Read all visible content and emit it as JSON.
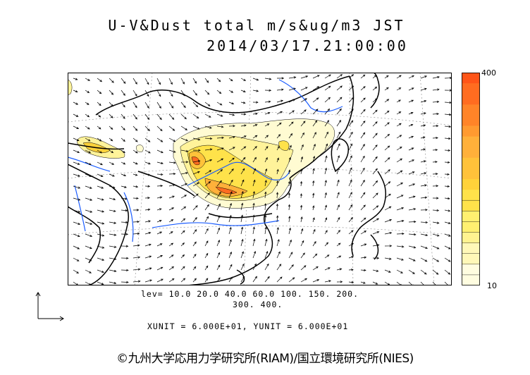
{
  "header": {
    "title_line1": "U-V&Dust total m/s&ug/m3 JST",
    "title_line2": "2014/03/17.21:00:00"
  },
  "colorbar": {
    "max_label": "400",
    "min_label": "10",
    "colors": [
      "#fffde0",
      "#fff8b8",
      "#fff390",
      "#fff070",
      "#ffe24a",
      "#ffd23a",
      "#ffc23a",
      "#ffb03a",
      "#ff9a30",
      "#ff8428",
      "#ff6c20",
      "#ff5518"
    ]
  },
  "legend": {
    "levels_line1": "lev= 10.0 20.0 40.0 60.0 100. 150. 200.",
    "levels_line2": "300. 400.",
    "units_line": "XUNIT = 6.000E+01, YUNIT = 6.000E+01"
  },
  "map": {
    "coast_color": "#000000",
    "river_color": "#1a5cff",
    "grid_color": "#888888"
  },
  "footer": {
    "credit": "©九州大学応用力学研究所(RIAM)/国立環境研究所(NIES)"
  }
}
